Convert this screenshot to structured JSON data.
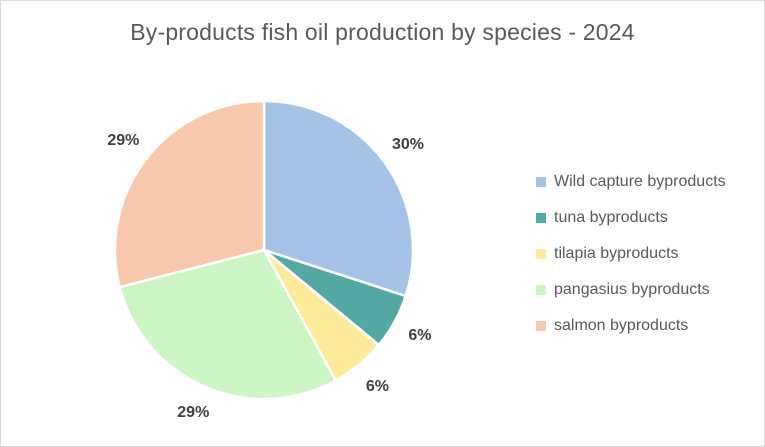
{
  "chart_data": {
    "type": "pie",
    "title": "By-products fish oil production by species - 2024",
    "categories": [
      "Wild capture byproducts",
      "tuna byproducts",
      "tilapia byproducts",
      "pangasius byproducts",
      "salmon byproducts"
    ],
    "values": [
      30,
      6,
      6,
      29,
      29
    ],
    "data_labels": [
      "30%",
      "6%",
      "6%",
      "29%",
      "29%"
    ],
    "colors": [
      "#a4c3e6",
      "#54a8a4",
      "#ffeb9c",
      "#ccf7c4",
      "#f8c8ad"
    ],
    "legend_position": "right",
    "start_angle_deg": 0,
    "direction": "clockwise"
  }
}
